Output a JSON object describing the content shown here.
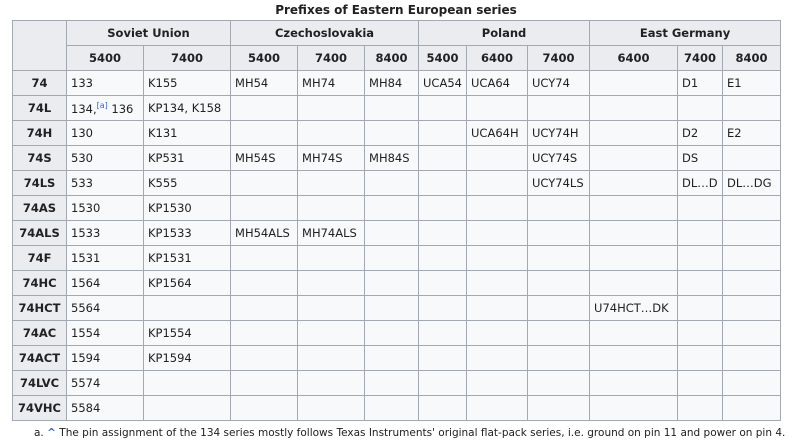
{
  "caption": "Prefixes of Eastern European series",
  "groups": [
    {
      "label": "Soviet Union",
      "columns": [
        "5400",
        "7400"
      ]
    },
    {
      "label": "Czechoslovakia",
      "columns": [
        "5400",
        "7400",
        "8400"
      ]
    },
    {
      "label": "Poland",
      "columns": [
        "5400",
        "6400",
        "7400"
      ]
    },
    {
      "label": "East Germany",
      "columns": [
        "6400",
        "7400",
        "8400"
      ]
    }
  ],
  "rows": [
    {
      "label": "74",
      "cells": [
        "133",
        "K155",
        "MH54",
        "MH74",
        "MH84",
        "UCA54",
        "UCA64",
        "UCY74",
        null,
        "D1",
        "E1"
      ]
    },
    {
      "label": "74L",
      "cells": [
        {
          "text": "134,",
          "ref": "[a]",
          "after": " 136"
        },
        "KP134, K158",
        null,
        null,
        null,
        null,
        null,
        null,
        null,
        null,
        null
      ]
    },
    {
      "label": "74H",
      "cells": [
        "130",
        "K131",
        null,
        null,
        null,
        null,
        "UCA64H",
        "UCY74H",
        null,
        "D2",
        "E2"
      ]
    },
    {
      "label": "74S",
      "cells": [
        "530",
        "KP531",
        "MH54S",
        "MH74S",
        "MH84S",
        null,
        null,
        "UCY74S",
        null,
        "DS",
        null
      ]
    },
    {
      "label": "74LS",
      "cells": [
        "533",
        "K555",
        null,
        null,
        null,
        null,
        null,
        "UCY74LS",
        null,
        "DL…D",
        "DL…DG"
      ]
    },
    {
      "label": "74AS",
      "cells": [
        "1530",
        "KP1530",
        null,
        null,
        null,
        null,
        null,
        null,
        null,
        null,
        null
      ]
    },
    {
      "label": "74ALS",
      "cells": [
        "1533",
        "KP1533",
        "MH54ALS",
        "MH74ALS",
        null,
        null,
        null,
        null,
        null,
        null,
        null
      ]
    },
    {
      "label": "74F",
      "cells": [
        "1531",
        "KP1531",
        null,
        null,
        null,
        null,
        null,
        null,
        null,
        null,
        null
      ]
    },
    {
      "label": "74HC",
      "cells": [
        "1564",
        "KP1564",
        null,
        null,
        null,
        null,
        null,
        null,
        null,
        null,
        null
      ]
    },
    {
      "label": "74HCT",
      "cells": [
        "5564",
        null,
        null,
        null,
        null,
        null,
        null,
        null,
        "U74HCT…DK",
        null,
        null
      ]
    },
    {
      "label": "74AC",
      "cells": [
        "1554",
        "KP1554",
        null,
        null,
        null,
        null,
        null,
        null,
        null,
        null,
        null
      ]
    },
    {
      "label": "74ACT",
      "cells": [
        "1594",
        "KP1594",
        null,
        null,
        null,
        null,
        null,
        null,
        null,
        null,
        null
      ]
    },
    {
      "label": "74LVC",
      "cells": [
        "5574",
        null,
        null,
        null,
        null,
        null,
        null,
        null,
        null,
        null,
        null
      ]
    },
    {
      "label": "74VHC",
      "cells": [
        "5584",
        null,
        null,
        null,
        null,
        null,
        null,
        null,
        null,
        null,
        null
      ]
    }
  ],
  "footnote": {
    "label": "a.",
    "backlink": "^",
    "text": "The pin assignment of the 134 series mostly follows Texas Instruments' original flat-pack series, i.e. ground on pin 11 and power on pin 4."
  }
}
